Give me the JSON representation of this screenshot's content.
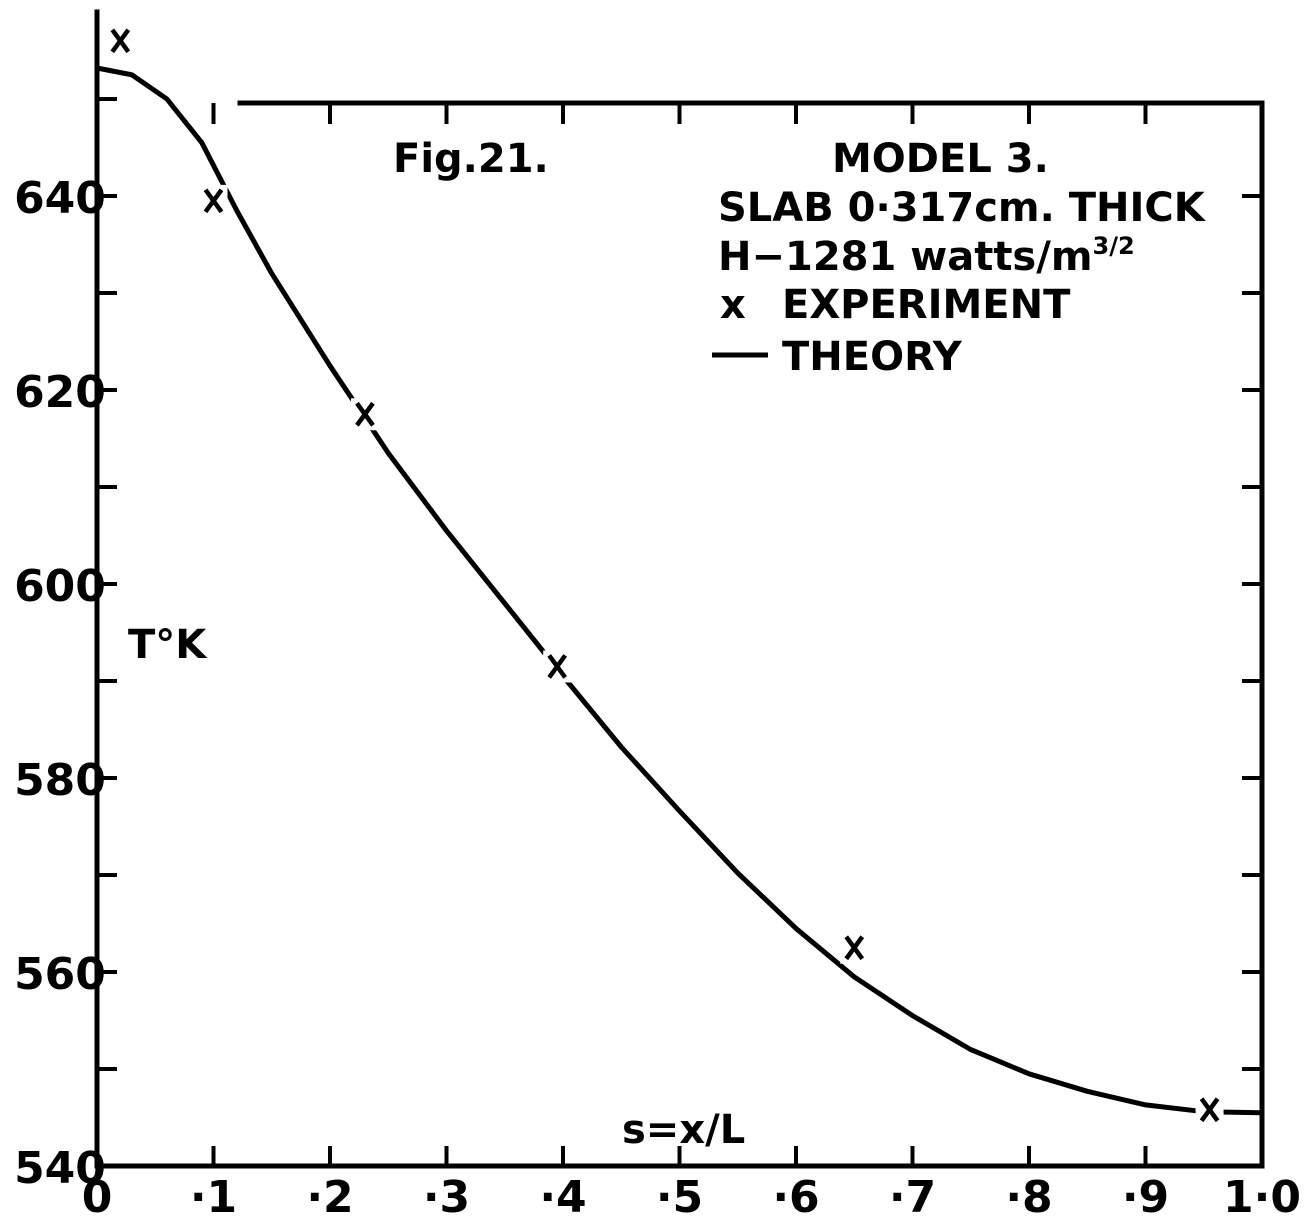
{
  "chart_data": {
    "type": "line",
    "figure_label": "Fig.21.",
    "xlabel": "s=x/L",
    "ylabel": "T°K",
    "xlim": [
      0,
      1.0
    ],
    "ylim": [
      540,
      659
    ],
    "x_ticks": [
      0,
      0.1,
      0.2,
      0.3,
      0.4,
      0.5,
      0.6,
      0.7,
      0.8,
      0.9,
      1.0
    ],
    "x_tick_labels": [
      "0",
      "·1",
      "·2",
      "·3",
      "·4",
      "·5",
      "·6",
      "·7",
      "·8",
      "·9",
      "1·0"
    ],
    "y_ticks": [
      540,
      550,
      560,
      570,
      580,
      590,
      600,
      610,
      620,
      630,
      640,
      650
    ],
    "y_tick_labels": [
      {
        "value": 540,
        "label": "540"
      },
      {
        "value": 560,
        "label": "560"
      },
      {
        "value": 580,
        "label": "580"
      },
      {
        "value": 600,
        "label": "600"
      },
      {
        "value": 620,
        "label": "620"
      },
      {
        "value": 640,
        "label": "640"
      }
    ],
    "annotation": {
      "line1": "MODEL 3.",
      "line2": "SLAB 0·317cm. THICK",
      "line3_main": "H−1281 watts/m",
      "line3_sup": "3/2",
      "legend_experiment": "EXPERIMENT",
      "legend_theory": "THEORY",
      "experiment_marker": "x"
    },
    "series": [
      {
        "name": "THEORY",
        "style": "line",
        "color": "#000000",
        "points": [
          [
            0.0,
            653.2
          ],
          [
            0.03,
            652.5
          ],
          [
            0.06,
            650.0
          ],
          [
            0.09,
            645.5
          ],
          [
            0.12,
            638.5
          ],
          [
            0.15,
            632.0
          ],
          [
            0.2,
            622.5
          ],
          [
            0.25,
            613.5
          ],
          [
            0.3,
            605.5
          ],
          [
            0.35,
            598.0
          ],
          [
            0.4,
            590.5
          ],
          [
            0.45,
            583.2
          ],
          [
            0.5,
            576.6
          ],
          [
            0.55,
            570.2
          ],
          [
            0.6,
            564.5
          ],
          [
            0.65,
            559.5
          ],
          [
            0.7,
            555.5
          ],
          [
            0.75,
            552.0
          ],
          [
            0.8,
            549.5
          ],
          [
            0.85,
            547.7
          ],
          [
            0.9,
            546.3
          ],
          [
            0.95,
            545.6
          ],
          [
            1.0,
            545.5
          ]
        ]
      },
      {
        "name": "EXPERIMENT",
        "style": "marker",
        "marker": "x",
        "color": "#000000",
        "points": [
          [
            0.02,
            656.0
          ],
          [
            0.1,
            639.5
          ],
          [
            0.23,
            617.5
          ],
          [
            0.395,
            591.5
          ],
          [
            0.65,
            562.5
          ],
          [
            0.955,
            545.8
          ]
        ]
      }
    ]
  }
}
